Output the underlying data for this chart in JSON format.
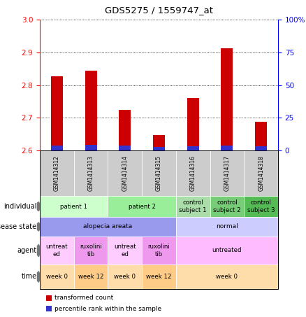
{
  "title": "GDS5275 / 1559747_at",
  "samples": [
    "GSM1414312",
    "GSM1414313",
    "GSM1414314",
    "GSM1414315",
    "GSM1414316",
    "GSM1414317",
    "GSM1414318"
  ],
  "red_values": [
    2.826,
    2.843,
    2.725,
    2.647,
    2.76,
    2.912,
    2.688
  ],
  "blue_values": [
    2.614,
    2.617,
    2.616,
    2.61,
    2.612,
    2.615,
    2.613
  ],
  "ylim_left": [
    2.6,
    3.0
  ],
  "ylim_right": [
    0,
    100
  ],
  "yticks_left": [
    2.6,
    2.7,
    2.8,
    2.9,
    3.0
  ],
  "yticks_right": [
    0,
    25,
    50,
    75,
    100
  ],
  "ytick_right_labels": [
    "0",
    "25",
    "50",
    "75",
    "100%"
  ],
  "bar_color_red": "#cc0000",
  "bar_color_blue": "#3333cc",
  "individual_row": {
    "groups": [
      {
        "label": "patient 1",
        "cols": [
          0,
          1
        ],
        "color": "#ccffcc"
      },
      {
        "label": "patient 2",
        "cols": [
          2,
          3
        ],
        "color": "#99ee99"
      },
      {
        "label": "control\nsubject 1",
        "cols": [
          4
        ],
        "color": "#aaddaa"
      },
      {
        "label": "control\nsubject 2",
        "cols": [
          5
        ],
        "color": "#77cc77"
      },
      {
        "label": "control\nsubject 3",
        "cols": [
          6
        ],
        "color": "#55bb55"
      }
    ]
  },
  "disease_state_row": {
    "groups": [
      {
        "label": "alopecia areata",
        "cols": [
          0,
          1,
          2,
          3
        ],
        "color": "#9999ee"
      },
      {
        "label": "normal",
        "cols": [
          4,
          5,
          6
        ],
        "color": "#ccccff"
      }
    ]
  },
  "agent_row": {
    "groups": [
      {
        "label": "untreat\ned",
        "cols": [
          0
        ],
        "color": "#ffccff"
      },
      {
        "label": "ruxolini\ntib",
        "cols": [
          1
        ],
        "color": "#ee99ee"
      },
      {
        "label": "untreat\ned",
        "cols": [
          2
        ],
        "color": "#ffccff"
      },
      {
        "label": "ruxolini\ntib",
        "cols": [
          3
        ],
        "color": "#ee99ee"
      },
      {
        "label": "untreated",
        "cols": [
          4,
          5,
          6
        ],
        "color": "#ffbbff"
      }
    ]
  },
  "time_row": {
    "groups": [
      {
        "label": "week 0",
        "cols": [
          0
        ],
        "color": "#ffddaa"
      },
      {
        "label": "week 12",
        "cols": [
          1
        ],
        "color": "#ffcc88"
      },
      {
        "label": "week 0",
        "cols": [
          2
        ],
        "color": "#ffddaa"
      },
      {
        "label": "week 12",
        "cols": [
          3
        ],
        "color": "#ffcc88"
      },
      {
        "label": "week 0",
        "cols": [
          4,
          5,
          6
        ],
        "color": "#ffddaa"
      }
    ]
  },
  "row_labels": [
    "individual",
    "disease state",
    "agent",
    "time"
  ],
  "background_color": "#ffffff",
  "sample_label_bg": "#cccccc"
}
